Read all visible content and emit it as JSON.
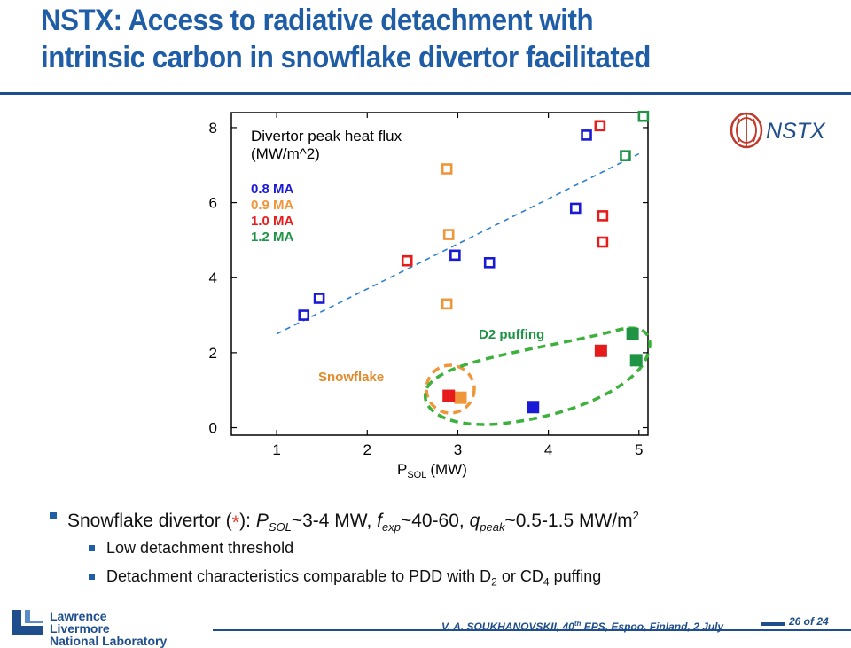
{
  "slide": {
    "title_line1": "NSTX: Access to radiative detachment with",
    "title_line2": "intrinsic carbon in snowflake divertor facilitated"
  },
  "logo": {
    "nstx_text": "NSTX"
  },
  "chart_data": {
    "type": "scatter",
    "xlabel_main": "P",
    "xlabel_sub": "SOL",
    "xlabel_unit": "(MW)",
    "legend_title_line1": "Divertor peak heat flux",
    "legend_title_line2": "(MW/m^2)",
    "xlim": [
      0.5,
      5.1
    ],
    "ylim": [
      -0.2,
      8.4
    ],
    "x_ticks": [
      "1",
      "2",
      "3",
      "4",
      "5"
    ],
    "y_ticks": [
      "0",
      "2",
      "4",
      "6",
      "8"
    ],
    "colors": {
      "0.8 MA": "#1a1ad6",
      "0.9 MA": "#f0963a",
      "1.0 MA": "#e61c1c",
      "1.2 MA": "#1e9444"
    },
    "series": [
      {
        "name": "0.8 MA",
        "color": "#1a1ad6",
        "style": "open",
        "points": [
          [
            1.3,
            3.0
          ],
          [
            1.47,
            3.45
          ],
          [
            2.97,
            4.6
          ],
          [
            3.35,
            4.4
          ],
          [
            4.3,
            5.85
          ],
          [
            4.42,
            7.8
          ]
        ]
      },
      {
        "name": "0.9 MA",
        "color": "#f0963a",
        "style": "open",
        "points": [
          [
            2.88,
            6.9
          ],
          [
            2.9,
            5.15
          ],
          [
            2.88,
            3.3
          ]
        ]
      },
      {
        "name": "1.0 MA",
        "color": "#e61c1c",
        "style": "open",
        "points": [
          [
            2.44,
            4.45
          ],
          [
            4.57,
            8.05
          ],
          [
            4.6,
            5.65
          ],
          [
            4.6,
            4.95
          ]
        ]
      },
      {
        "name": "1.2 MA",
        "color": "#1e9444",
        "style": "open",
        "points": [
          [
            4.85,
            7.25
          ],
          [
            5.05,
            8.3
          ]
        ]
      },
      {
        "name": "0.8 MA",
        "color": "#1a1ad6",
        "style": "filled",
        "points": [
          [
            3.83,
            0.55
          ]
        ]
      },
      {
        "name": "0.9 MA",
        "color": "#f0963a",
        "style": "filled",
        "points": [
          [
            3.03,
            0.8
          ]
        ]
      },
      {
        "name": "1.0 MA",
        "color": "#e61c1c",
        "style": "filled",
        "points": [
          [
            2.9,
            0.85
          ],
          [
            4.58,
            2.05
          ]
        ]
      },
      {
        "name": "1.2 MA",
        "color": "#1e9444",
        "style": "filled",
        "points": [
          [
            4.93,
            2.5
          ],
          [
            4.97,
            1.8
          ]
        ]
      }
    ],
    "trend_line": [
      [
        1.0,
        2.5
      ],
      [
        5.0,
        7.3
      ]
    ],
    "annotations": {
      "snowflake": "Snowflake",
      "d2": "D2 puffing"
    }
  },
  "bullets": {
    "b1_prefix": "Snowflake divertor (",
    "b1_star": "*",
    "b1_mid1": "): ",
    "b1_p": "P",
    "b1_p_sub": "SOL",
    "b1_p_val": "~3-4 MW, ",
    "b1_f": "f",
    "b1_f_sub": "exp",
    "b1_f_val": "~40-60, ",
    "b1_q": "q",
    "b1_q_sub": "peak",
    "b1_q_val": "~0.5-1.5 MW/m",
    "b1_q_sup": "2",
    "b2": "Low detachment threshold",
    "b3_a": "Detachment characteristics comparable to PDD with D",
    "b3_sub1": "2",
    "b3_b": " or CD",
    "b3_sub2": "4",
    "b3_c": " puffing"
  },
  "footer": {
    "lab_line1": "Lawrence Livermore",
    "lab_line2": "National Laboratory",
    "cite_a": "V. A. SOUKHANOVSKII, 40",
    "cite_sup": "th",
    "cite_b": " EPS, Espoo, Finland, 2 July",
    "page": "26 of 24"
  }
}
